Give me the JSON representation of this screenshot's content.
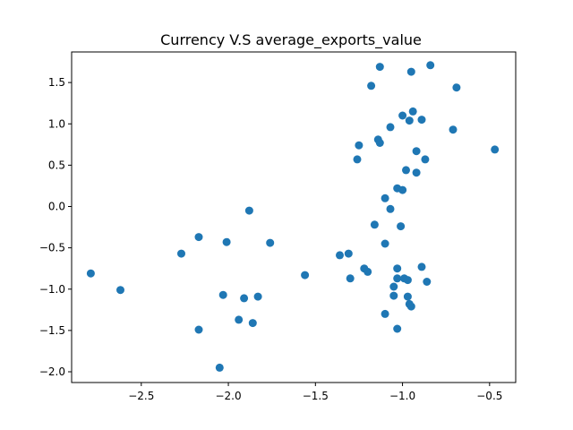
{
  "chart_data": {
    "type": "scatter",
    "title": "Currency V.S average_exports_value",
    "xlabel": "",
    "ylabel": "",
    "xlim": [
      -2.9,
      -0.35
    ],
    "ylim": [
      -2.13,
      1.87
    ],
    "grid": false,
    "marker_color": "#1f77b4",
    "x_ticks": [
      -2.5,
      -2.0,
      -1.5,
      -1.0,
      -0.5
    ],
    "x_tick_labels": [
      "−2.5",
      "−2.0",
      "−1.5",
      "−1.0",
      "−0.5"
    ],
    "y_ticks": [
      -2.0,
      -1.5,
      -1.0,
      -0.5,
      0.0,
      0.5,
      1.0,
      1.5
    ],
    "y_tick_labels": [
      "−2.0",
      "−1.5",
      "−1.0",
      "−0.5",
      "0.0",
      "0.5",
      "1.0",
      "1.5"
    ],
    "points": [
      {
        "x": -2.79,
        "y": -0.81
      },
      {
        "x": -2.62,
        "y": -1.01
      },
      {
        "x": -2.27,
        "y": -0.57
      },
      {
        "x": -2.17,
        "y": -0.37
      },
      {
        "x": -2.17,
        "y": -1.49
      },
      {
        "x": -2.05,
        "y": -1.95
      },
      {
        "x": -2.03,
        "y": -1.07
      },
      {
        "x": -2.01,
        "y": -0.43
      },
      {
        "x": -1.94,
        "y": -1.37
      },
      {
        "x": -1.91,
        "y": -1.11
      },
      {
        "x": -1.88,
        "y": -0.05
      },
      {
        "x": -1.86,
        "y": -1.41
      },
      {
        "x": -1.83,
        "y": -1.09
      },
      {
        "x": -1.76,
        "y": -0.44
      },
      {
        "x": -1.56,
        "y": -0.83
      },
      {
        "x": -1.36,
        "y": -0.59
      },
      {
        "x": -1.31,
        "y": -0.57
      },
      {
        "x": -1.3,
        "y": -0.87
      },
      {
        "x": -1.26,
        "y": 0.57
      },
      {
        "x": -1.25,
        "y": 0.74
      },
      {
        "x": -1.22,
        "y": -0.75
      },
      {
        "x": -1.2,
        "y": -0.79
      },
      {
        "x": -1.18,
        "y": 1.46
      },
      {
        "x": -1.16,
        "y": -0.22
      },
      {
        "x": -1.14,
        "y": 0.81
      },
      {
        "x": -1.13,
        "y": 1.69
      },
      {
        "x": -1.13,
        "y": 0.77
      },
      {
        "x": -1.1,
        "y": 0.1
      },
      {
        "x": -1.1,
        "y": -0.45
      },
      {
        "x": -1.1,
        "y": -1.3
      },
      {
        "x": -1.07,
        "y": -0.03
      },
      {
        "x": -1.07,
        "y": 0.96
      },
      {
        "x": -1.05,
        "y": -0.97
      },
      {
        "x": -1.05,
        "y": -1.08
      },
      {
        "x": -1.03,
        "y": 0.22
      },
      {
        "x": -1.03,
        "y": -0.75
      },
      {
        "x": -1.03,
        "y": -0.87
      },
      {
        "x": -1.03,
        "y": -1.48
      },
      {
        "x": -1.01,
        "y": -0.24
      },
      {
        "x": -1.0,
        "y": 0.2
      },
      {
        "x": -1.0,
        "y": 1.1
      },
      {
        "x": -0.99,
        "y": -0.87
      },
      {
        "x": -0.98,
        "y": 0.44
      },
      {
        "x": -0.97,
        "y": -1.09
      },
      {
        "x": -0.97,
        "y": -0.89
      },
      {
        "x": -0.96,
        "y": 1.04
      },
      {
        "x": -0.96,
        "y": -1.18
      },
      {
        "x": -0.95,
        "y": 1.63
      },
      {
        "x": -0.95,
        "y": -1.21
      },
      {
        "x": -0.94,
        "y": 1.15
      },
      {
        "x": -0.92,
        "y": 0.67
      },
      {
        "x": -0.92,
        "y": 0.41
      },
      {
        "x": -0.89,
        "y": 1.05
      },
      {
        "x": -0.89,
        "y": -0.73
      },
      {
        "x": -0.87,
        "y": 0.57
      },
      {
        "x": -0.86,
        "y": -0.91
      },
      {
        "x": -0.84,
        "y": 1.71
      },
      {
        "x": -0.71,
        "y": 0.93
      },
      {
        "x": -0.69,
        "y": 1.44
      },
      {
        "x": -0.47,
        "y": 0.69
      }
    ]
  }
}
